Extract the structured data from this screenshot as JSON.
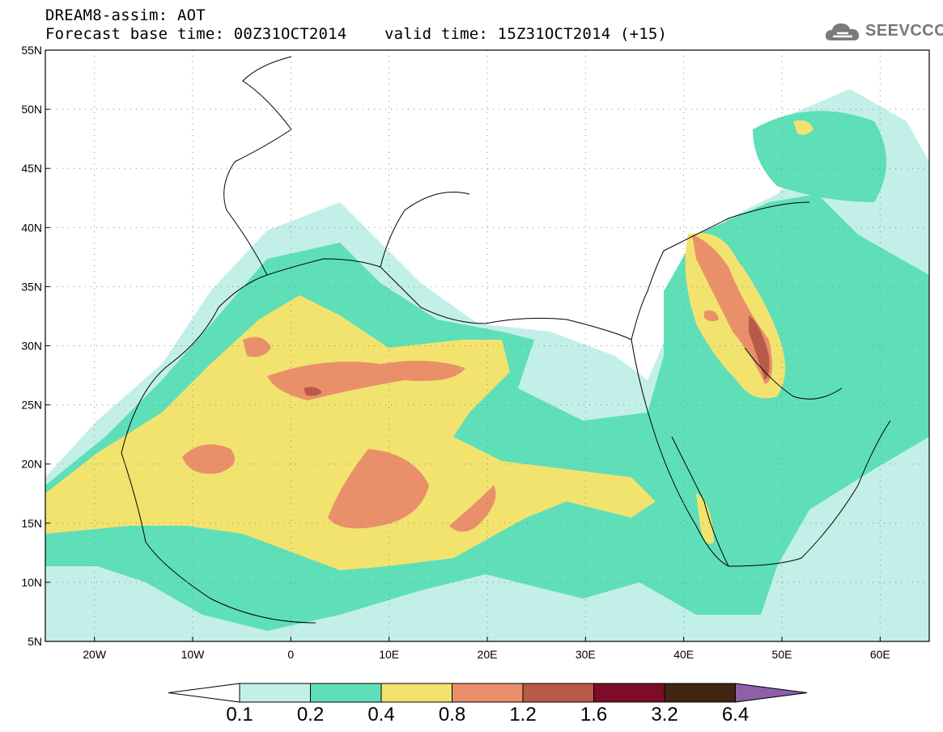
{
  "header": {
    "title": "DREAM8-assim: AOT",
    "base_time": "Forecast base time: 00Z31OCT2014",
    "valid_time": "valid time: 15Z31OCT2014 (+15)"
  },
  "logo": {
    "text": "SEEVCCC",
    "icon": "cloud-icon"
  },
  "map": {
    "lat_labels": [
      "55N",
      "50N",
      "45N",
      "40N",
      "35N",
      "30N",
      "25N",
      "20N",
      "15N",
      "10N",
      "5N"
    ],
    "lon_labels": [
      "20W",
      "10W",
      "0",
      "10E",
      "20E",
      "30E",
      "40E",
      "50E",
      "60E"
    ],
    "lat_range": [
      5,
      55
    ],
    "lon_range": [
      -25,
      65
    ],
    "grid": true
  },
  "colorbar": {
    "levels": [
      "0.1",
      "0.2",
      "0.4",
      "0.8",
      "1.2",
      "1.6",
      "3.2",
      "6.4"
    ],
    "colors": [
      "#c3efe9",
      "#5edfb8",
      "#f2e36f",
      "#e9906a",
      "#b85a48",
      "#7c0c28",
      "#3f2512",
      "#8f5fa8"
    ],
    "under_color": "#ffffff"
  }
}
